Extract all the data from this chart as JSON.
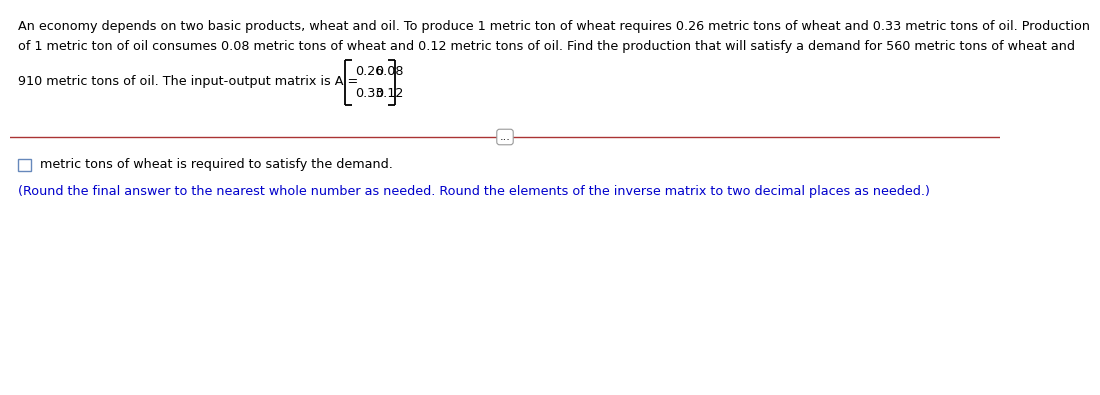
{
  "para_text_line1": "An economy depends on two basic products, wheat and oil. To produce 1 metric ton of wheat requires 0.26 metric tons of wheat and 0.33 metric tons of oil. Production",
  "para_text_line2": "of 1 metric ton of oil consumes 0.08 metric tons of wheat and 0.12 metric tons of oil. Find the production that will satisfy a demand for 560 metric tons of wheat and",
  "line3_before_matrix": "910 metric tons of oil. The input-output matrix is A =",
  "matrix_row1": [
    "0.26",
    "0.08"
  ],
  "matrix_row2": [
    "0.33",
    "0.12"
  ],
  "answer_line": " metric tons of wheat is required to satisfy the demand.",
  "hint_line": "(Round the final answer to the nearest whole number as needed. Round the elements of the inverse matrix to two decimal places as needed.)",
  "divider_label": "...",
  "bg_color": "#ffffff",
  "text_color": "#000000",
  "hint_color": "#0000cc",
  "divider_color": "#aa3333",
  "font_size_main": 9.2,
  "checkbox_color": "#6688bb"
}
